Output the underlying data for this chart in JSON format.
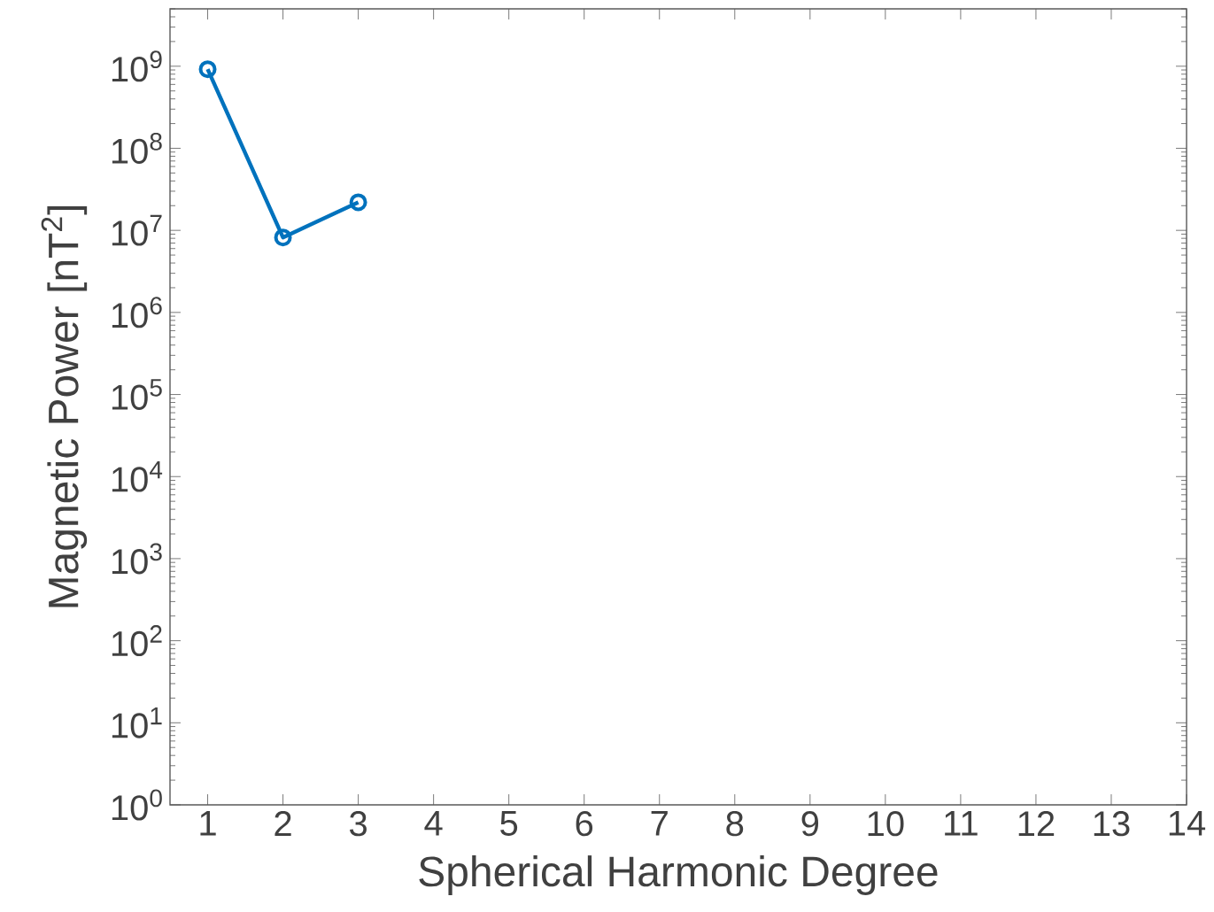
{
  "chart_data": {
    "type": "line",
    "xlabel": "Spherical Harmonic Degree",
    "ylabel": "Magnetic Power [nT$^{2}$]",
    "x": [
      1,
      2,
      3
    ],
    "series": [
      {
        "color": "#0072bd",
        "values": [
          920000000,
          8200000,
          22000000
        ]
      }
    ],
    "log": "y",
    "grid": false,
    "marker": "circle",
    "line_style": "solid",
    "xlim": [
      0.5,
      14
    ],
    "ylim": [
      1,
      5000000000
    ],
    "xticks": [
      1,
      2,
      3,
      4,
      5,
      6,
      7,
      8,
      9,
      10,
      11,
      12,
      13,
      14
    ],
    "yticks": [
      {
        "value": 1,
        "label": "10$^{0}$"
      },
      {
        "value": 10,
        "label": "10$^{1}$"
      },
      {
        "value": 100,
        "label": "10$^{2}$"
      },
      {
        "value": 1000,
        "label": "10$^{3}$"
      },
      {
        "value": 10000,
        "label": "10$^{4}$"
      },
      {
        "value": 100000,
        "label": "10$^{5}$"
      },
      {
        "value": 1000000,
        "label": "10$^{6}$"
      },
      {
        "value": 10000000,
        "label": "10$^{7}$"
      },
      {
        "value": 100000000,
        "label": "10$^{8}$"
      },
      {
        "value": 1000000000,
        "label": "10$^{9}$"
      }
    ]
  }
}
